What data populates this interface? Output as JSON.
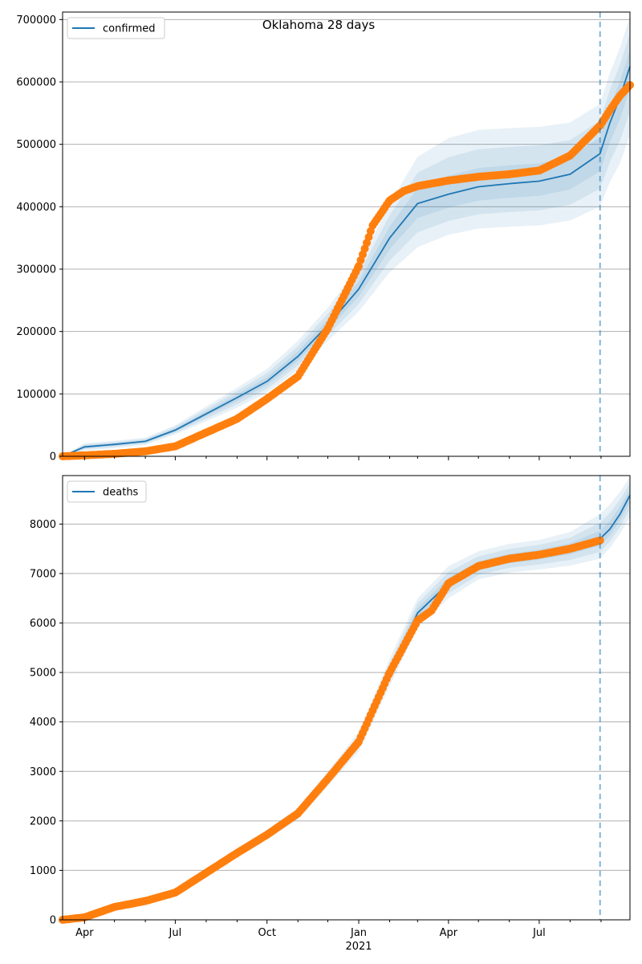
{
  "figure": {
    "title": "Oklahoma 28 days"
  },
  "colors": {
    "model": "#1f77b4",
    "observed": "#ff7f0e",
    "band": "#1f77b4",
    "grid": "#b0b0b0",
    "forecast_line": "#1f77b4"
  },
  "chart_data": [
    {
      "type": "line",
      "panel": "top",
      "legend": [
        "confirmed"
      ],
      "legend_position": "top-left",
      "grid": "horizontal",
      "ylim": [
        0,
        712000
      ],
      "yticks": [
        0,
        100000,
        200000,
        300000,
        400000,
        500000,
        600000,
        700000
      ],
      "ytick_labels": [
        "0",
        "100000",
        "200000",
        "300000",
        "400000",
        "500000",
        "600000",
        "700000"
      ],
      "xlim": [
        "2020-03-10",
        "2021-09-30"
      ],
      "forecast_start": "2021-08-31",
      "series": [
        {
          "name": "confirmed",
          "kind": "model",
          "x": [
            "2020-03-10",
            "2020-04-01",
            "2020-05-01",
            "2020-06-01",
            "2020-07-01",
            "2020-08-01",
            "2020-09-01",
            "2020-10-01",
            "2020-11-01",
            "2020-12-01",
            "2021-01-01",
            "2021-02-01",
            "2021-03-01",
            "2021-04-01",
            "2021-05-01",
            "2021-06-01",
            "2021-07-01",
            "2021-08-01",
            "2021-08-31",
            "2021-09-10",
            "2021-09-20",
            "2021-09-30"
          ],
          "y": [
            0,
            15000,
            19000,
            24000,
            42000,
            68000,
            94000,
            120000,
            160000,
            210000,
            268000,
            350000,
            405000,
            420000,
            432000,
            437000,
            441000,
            452000,
            485000,
            535000,
            575000,
            625000
          ]
        },
        {
          "name": "observed",
          "kind": "points",
          "x": [
            "2020-03-10",
            "2020-04-01",
            "2020-05-01",
            "2020-06-01",
            "2020-07-01",
            "2020-08-01",
            "2020-09-01",
            "2020-10-01",
            "2020-11-01",
            "2020-12-01",
            "2021-01-01",
            "2021-01-15",
            "2021-02-01",
            "2021-02-15",
            "2021-03-01",
            "2021-04-01",
            "2021-05-01",
            "2021-06-01",
            "2021-07-01",
            "2021-08-01",
            "2021-08-31",
            "2021-09-10",
            "2021-09-20",
            "2021-09-30"
          ],
          "y": [
            0,
            1500,
            4000,
            8000,
            16000,
            38000,
            60000,
            92000,
            128000,
            205000,
            305000,
            370000,
            410000,
            425000,
            433000,
            442000,
            448000,
            452000,
            458000,
            482000,
            530000,
            555000,
            578000,
            595000
          ]
        }
      ],
      "band": {
        "x": [
          "2020-03-10",
          "2020-04-01",
          "2020-05-01",
          "2020-06-01",
          "2020-07-01",
          "2020-08-01",
          "2020-09-01",
          "2020-10-01",
          "2020-11-01",
          "2020-12-01",
          "2021-01-01",
          "2021-02-01",
          "2021-03-01",
          "2021-04-01",
          "2021-05-01",
          "2021-06-01",
          "2021-07-01",
          "2021-08-01",
          "2021-08-31",
          "2021-09-10",
          "2021-09-20",
          "2021-09-30"
        ],
        "lower": [
          0,
          9000,
          13000,
          18000,
          35000,
          56000,
          78000,
          102000,
          138000,
          185000,
          232000,
          295000,
          335000,
          355000,
          365000,
          368000,
          370000,
          378000,
          400000,
          440000,
          470000,
          515000
        ],
        "upper": [
          0,
          21000,
          25000,
          30000,
          50000,
          80000,
          110000,
          140000,
          185000,
          238000,
          305000,
          405000,
          480000,
          510000,
          523000,
          526000,
          528000,
          535000,
          565000,
          615000,
          655000,
          705000
        ]
      }
    },
    {
      "type": "line",
      "panel": "bottom",
      "legend": [
        "deaths"
      ],
      "legend_position": "top-left",
      "grid": "horizontal",
      "ylim": [
        0,
        8980
      ],
      "yticks": [
        0,
        1000,
        2000,
        3000,
        4000,
        5000,
        6000,
        7000,
        8000
      ],
      "ytick_labels": [
        "0",
        "1000",
        "2000",
        "3000",
        "4000",
        "5000",
        "6000",
        "7000",
        "8000"
      ],
      "xlim": [
        "2020-03-10",
        "2021-09-30"
      ],
      "xticks": [
        "2020-04-01",
        "2020-07-01",
        "2020-10-01",
        "2021-01-01",
        "2021-04-01",
        "2021-07-01"
      ],
      "xtick_labels": [
        "Apr",
        "Jul",
        "Oct",
        "Jan",
        "Apr",
        "Jul"
      ],
      "xtick_year_label": "2021",
      "forecast_start": "2021-08-31",
      "series": [
        {
          "name": "deaths",
          "kind": "model",
          "x": [
            "2020-03-10",
            "2020-04-01",
            "2020-05-01",
            "2020-06-01",
            "2020-07-01",
            "2020-08-01",
            "2020-09-01",
            "2020-10-01",
            "2020-11-01",
            "2020-12-01",
            "2021-01-01",
            "2021-02-01",
            "2021-03-01",
            "2021-04-01",
            "2021-05-01",
            "2021-06-01",
            "2021-07-01",
            "2021-08-01",
            "2021-08-31",
            "2021-09-10",
            "2021-09-20",
            "2021-09-30"
          ],
          "y": [
            0,
            50,
            260,
            380,
            550,
            950,
            1350,
            1720,
            2150,
            2850,
            3600,
            5000,
            6200,
            6800,
            7150,
            7300,
            7380,
            7500,
            7700,
            7900,
            8200,
            8580
          ]
        },
        {
          "name": "observed",
          "kind": "points",
          "x": [
            "2020-03-10",
            "2020-04-01",
            "2020-05-01",
            "2020-06-01",
            "2020-07-01",
            "2020-08-01",
            "2020-09-01",
            "2020-10-01",
            "2020-11-01",
            "2020-12-01",
            "2021-01-01",
            "2021-02-01",
            "2021-03-01",
            "2021-03-15",
            "2021-04-01",
            "2021-05-01",
            "2021-06-01",
            "2021-07-01",
            "2021-08-01",
            "2021-08-31"
          ],
          "y": [
            0,
            50,
            260,
            380,
            550,
            950,
            1350,
            1720,
            2150,
            2850,
            3600,
            5000,
            6050,
            6250,
            6800,
            7150,
            7300,
            7380,
            7500,
            7670
          ]
        }
      ],
      "band": {
        "x": [
          "2020-03-10",
          "2020-04-01",
          "2020-05-01",
          "2020-06-01",
          "2020-07-01",
          "2020-08-01",
          "2020-09-01",
          "2020-10-01",
          "2020-11-01",
          "2020-12-01",
          "2021-01-01",
          "2021-02-01",
          "2021-03-01",
          "2021-04-01",
          "2021-05-01",
          "2021-06-01",
          "2021-07-01",
          "2021-08-01",
          "2021-08-31",
          "2021-09-10",
          "2021-09-20",
          "2021-09-30"
        ],
        "lower": [
          0,
          40,
          230,
          340,
          500,
          880,
          1260,
          1620,
          2030,
          2700,
          3400,
          4720,
          5900,
          6500,
          6880,
          7020,
          7080,
          7160,
          7300,
          7520,
          7800,
          8150
        ],
        "upper": [
          0,
          60,
          290,
          420,
          600,
          1020,
          1440,
          1820,
          2270,
          3000,
          3800,
          5280,
          6500,
          7150,
          7450,
          7600,
          7680,
          7840,
          8200,
          8400,
          8650,
          8950
        ]
      }
    }
  ]
}
